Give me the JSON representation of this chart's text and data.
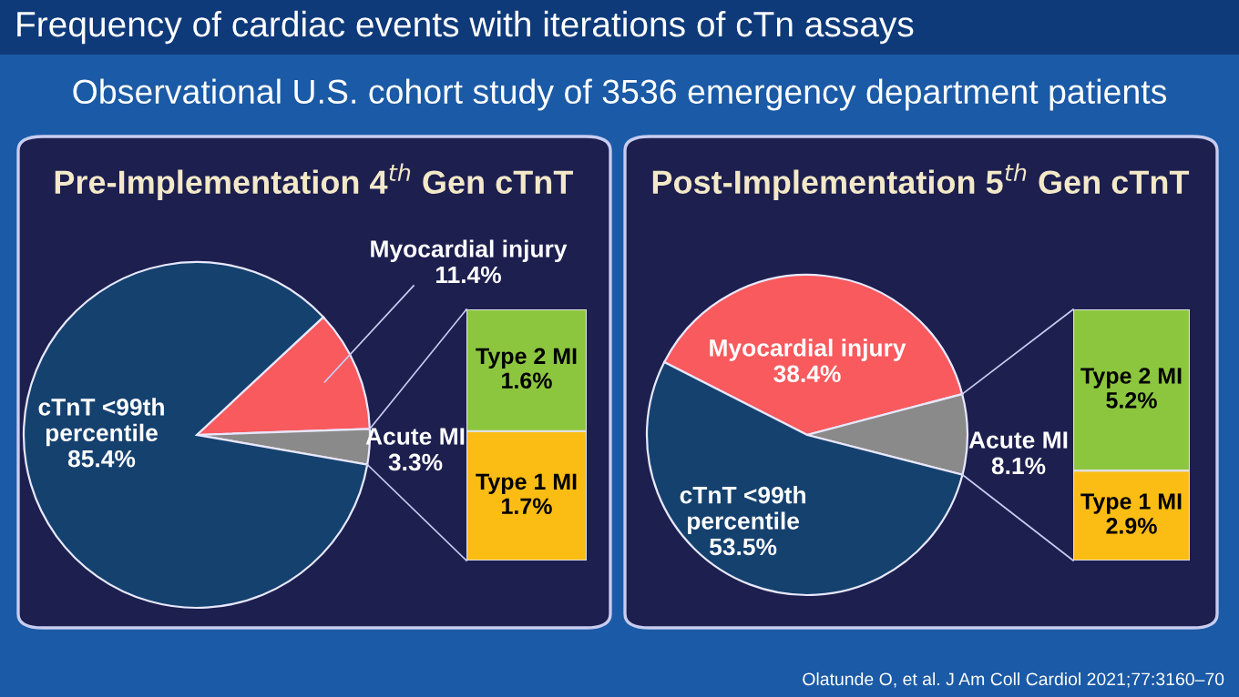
{
  "chart_data": [
    {
      "type": "pie",
      "title": "Pre-Implementation 4$^{th}$ Gen cTnT",
      "categories": [
        "Myocardial injury",
        "Acute MI",
        "cTnT <99th\npercentile"
      ],
      "values": [
        11.4,
        3.3,
        85.4
      ],
      "value_labels": [
        "11.4%",
        "3.3%",
        "85.4%"
      ],
      "colors": [
        "#f85a5e",
        "#8a8a8a",
        "#15416f"
      ],
      "annotations": [
        "Frequency of cardiac events with iterations of cTn assays",
        "Observational U.S. cohort study of 3536 emergency department patients",
        "Olatunde O, et al. J Am Coll Cardiol 2021;77:3160–70"
      ]
    },
    {
      "type": "bar",
      "stacked": true,
      "categories": [
        null
      ],
      "series": [
        {
          "name": "Type 1 MI",
          "color": "#fbbd14",
          "values": [
            1.7
          ],
          "value_labels": [
            "1.7%"
          ]
        },
        {
          "name": "Type 2 MI",
          "color": "#8cc63e",
          "values": [
            1.6
          ],
          "value_labels": [
            "1.6%"
          ]
        }
      ]
    },
    {
      "type": "pie",
      "title": "Post-Implementation 5$^{th}$ Gen cTnT",
      "categories": [
        "Myocardial injury",
        "Acute MI",
        "cTnT <99th\npercentile"
      ],
      "values": [
        38.4,
        8.1,
        53.5
      ],
      "value_labels": [
        "38.4%",
        "8.1%",
        "53.5%"
      ],
      "colors": [
        "#f85a5e",
        "#8a8a8a",
        "#15416f"
      ]
    },
    {
      "type": "bar",
      "stacked": true,
      "categories": [
        null
      ],
      "series": [
        {
          "name": "Type 1 MI",
          "color": "#fbbd14",
          "values": [
            2.9
          ],
          "value_labels": [
            "2.9%"
          ]
        },
        {
          "name": "Type 2 MI",
          "color": "#8cc63e",
          "values": [
            5.2
          ],
          "value_labels": [
            "5.2%"
          ]
        }
      ]
    }
  ]
}
